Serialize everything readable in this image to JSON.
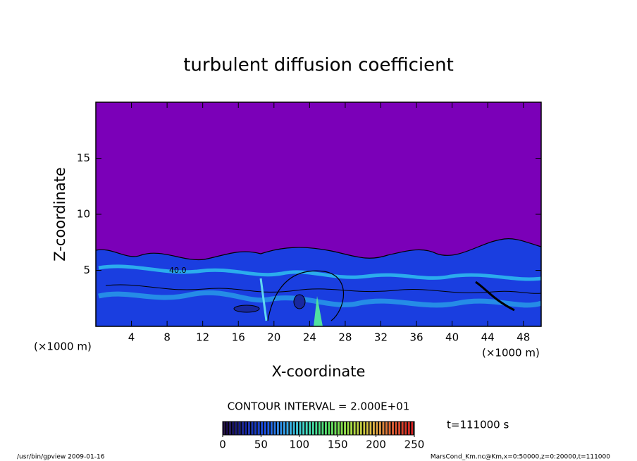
{
  "chart_data": {
    "type": "contour",
    "title": "turbulent diffusion coefficient",
    "x_label": "X-coordinate",
    "y_label": "Z-coordinate",
    "x_unit": "(×1000 m)",
    "y_unit": "(×1000 m)",
    "xlim": [
      0,
      50
    ],
    "ylim": [
      0,
      20
    ],
    "xticks": [
      4,
      8,
      12,
      16,
      20,
      24,
      28,
      32,
      36,
      40,
      44,
      48
    ],
    "yticks": [
      5,
      10,
      15
    ],
    "background_color": "#7b00b8",
    "contour_label": "40.0",
    "contour_interval": "CONTOUR INTERVAL = 2.000E+01",
    "time_label": "t=111000 s",
    "colorbar": {
      "lim": [
        0,
        250
      ],
      "ticks": [
        0,
        50,
        100,
        150,
        200,
        250
      ],
      "colors": [
        "#18003a",
        "#1020a0",
        "#1850e8",
        "#30a8f0",
        "#40e0c0",
        "#50e060",
        "#a0e040",
        "#e0c040",
        "#e06030",
        "#d82020"
      ]
    },
    "footer_left": "/usr/bin/gpview  2009-01-16",
    "footer_right": "MarsCond_Km.nc@Km,x=0:50000,z=0:20000,t=111000"
  }
}
